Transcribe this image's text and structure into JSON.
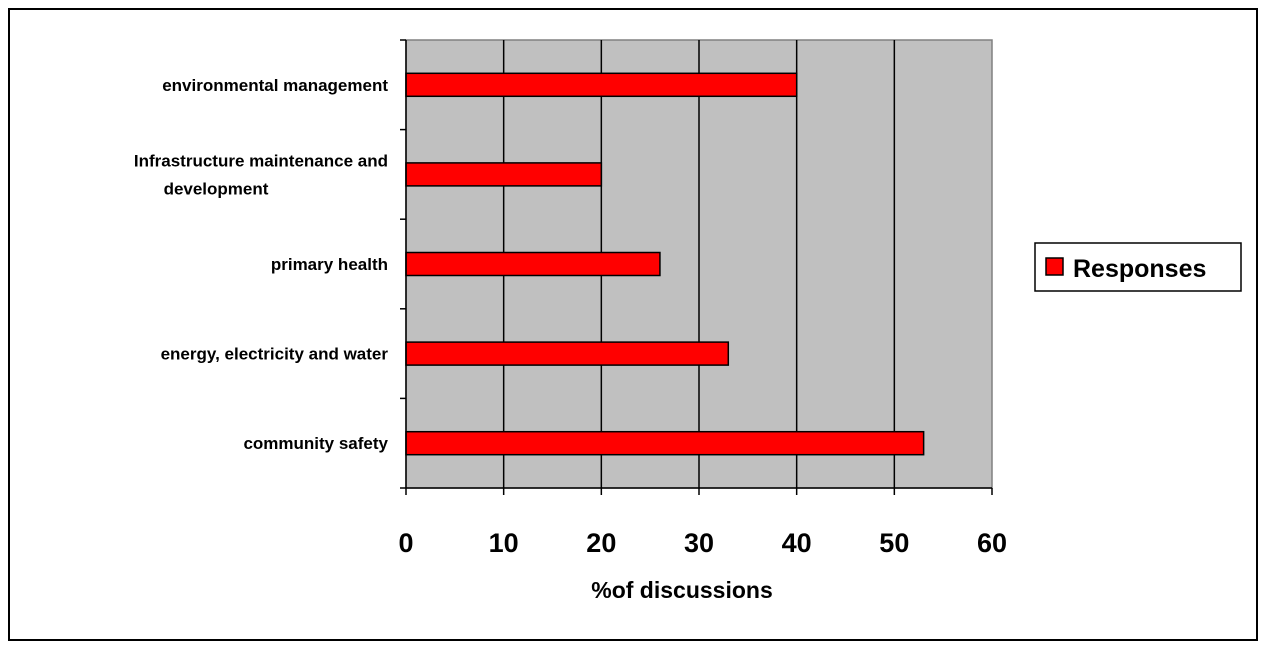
{
  "chart_data": {
    "type": "bar",
    "orientation": "horizontal",
    "categories": [
      [
        "environmental management"
      ],
      [
        "Infrastructure maintenance and",
        "development"
      ],
      [
        "primary health"
      ],
      [
        "energy, electricity and water"
      ],
      [
        "community safety"
      ]
    ],
    "series": [
      {
        "name": "Responses",
        "values": [
          40,
          20,
          26,
          33,
          53
        ],
        "color": "#ff0000"
      }
    ],
    "xlabel": "%of discussions",
    "xlim": [
      0,
      60
    ],
    "xticks": [
      "0",
      "10",
      "20",
      "30",
      "40",
      "50",
      "60"
    ],
    "grid": true,
    "plot_background": "#c0c0c0",
    "legend_position": "right"
  }
}
